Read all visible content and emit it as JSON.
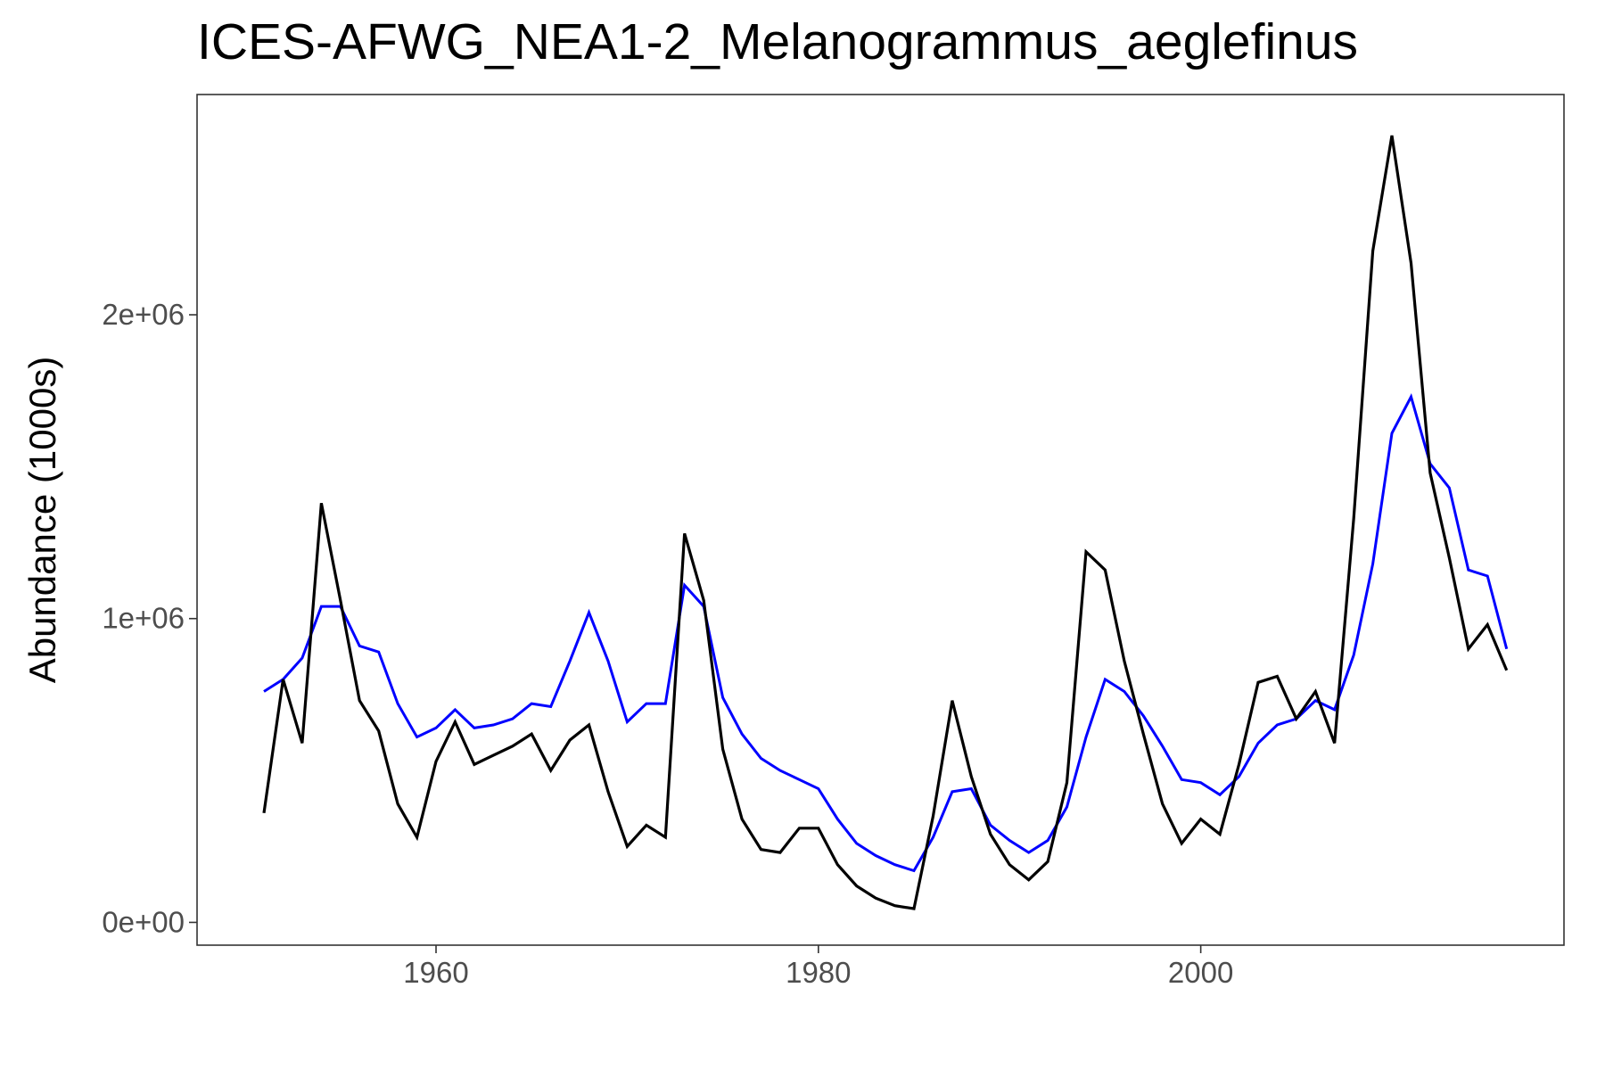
{
  "chart_data": {
    "type": "line",
    "title": "ICES-AFWG_NEA1-2_Melanogrammus_aeglefinus",
    "xlabel": "",
    "ylabel": "Abundance (1000s)",
    "xlim": [
      1947.5,
      2019
    ],
    "ylim": [
      -75000,
      2725000
    ],
    "grid": false,
    "x_ticks": [
      1960,
      1980,
      2000
    ],
    "x_tick_labels": [
      "1960",
      "1980",
      "2000"
    ],
    "y_ticks": [
      0,
      1000000,
      2000000
    ],
    "y_tick_labels": [
      "0e+00",
      "1e+06",
      "2e+06"
    ],
    "x": [
      1951,
      1952,
      1953,
      1954,
      1955,
      1956,
      1957,
      1958,
      1959,
      1960,
      1961,
      1962,
      1963,
      1964,
      1965,
      1966,
      1967,
      1968,
      1969,
      1970,
      1971,
      1972,
      1973,
      1974,
      1975,
      1976,
      1977,
      1978,
      1979,
      1980,
      1981,
      1982,
      1983,
      1984,
      1985,
      1986,
      1987,
      1988,
      1989,
      1990,
      1991,
      1992,
      1993,
      1994,
      1995,
      1996,
      1997,
      1998,
      1999,
      2000,
      2001,
      2002,
      2003,
      2004,
      2005,
      2006,
      2007,
      2008,
      2009,
      2010,
      2011,
      2012,
      2013,
      2014,
      2015,
      2016
    ],
    "series": [
      {
        "color": "#000000",
        "values": [
          360000,
          800000,
          590000,
          1380000,
          1060000,
          730000,
          630000,
          390000,
          280000,
          530000,
          660000,
          520000,
          550000,
          580000,
          620000,
          500000,
          600000,
          650000,
          430000,
          250000,
          320000,
          280000,
          1280000,
          1060000,
          570000,
          340000,
          240000,
          230000,
          310000,
          310000,
          190000,
          120000,
          80000,
          55000,
          45000,
          350000,
          730000,
          480000,
          290000,
          190000,
          140000,
          200000,
          460000,
          1220000,
          1160000,
          860000,
          620000,
          390000,
          260000,
          340000,
          290000,
          520000,
          790000,
          810000,
          670000,
          760000,
          590000,
          1330000,
          2210000,
          2590000,
          2170000,
          1480000,
          1200000,
          900000,
          980000,
          830000
        ]
      },
      {
        "color": "#0000ff",
        "values": [
          760000,
          800000,
          870000,
          1040000,
          1040000,
          910000,
          890000,
          720000,
          610000,
          640000,
          700000,
          640000,
          650000,
          670000,
          720000,
          710000,
          860000,
          1020000,
          860000,
          660000,
          720000,
          720000,
          1110000,
          1040000,
          740000,
          620000,
          540000,
          500000,
          470000,
          440000,
          340000,
          260000,
          220000,
          190000,
          170000,
          280000,
          430000,
          440000,
          320000,
          270000,
          230000,
          270000,
          380000,
          610000,
          800000,
          760000,
          680000,
          580000,
          470000,
          460000,
          420000,
          480000,
          590000,
          650000,
          670000,
          730000,
          700000,
          880000,
          1180000,
          1610000,
          1730000,
          1510000,
          1430000,
          1160000,
          1140000,
          900000
        ]
      }
    ]
  }
}
